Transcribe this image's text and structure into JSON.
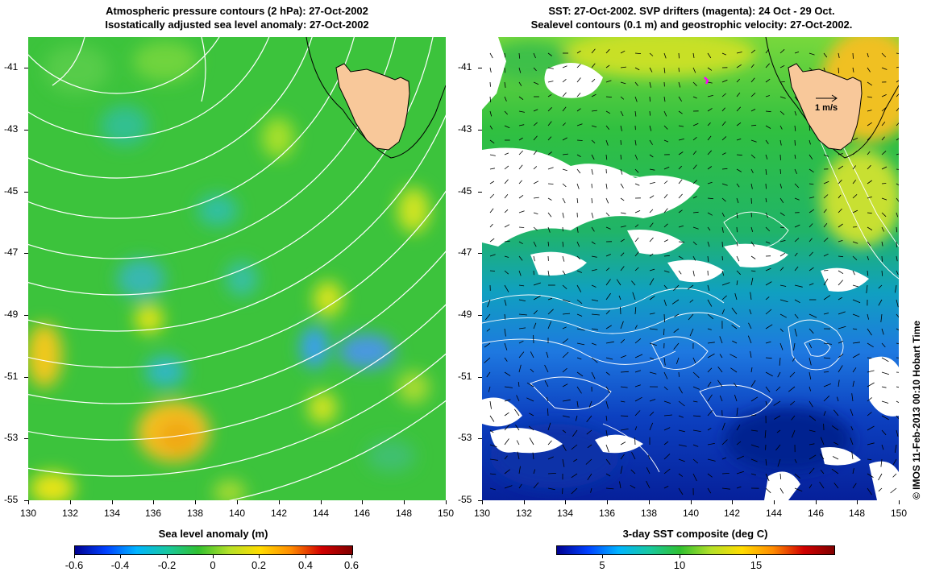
{
  "left_panel": {
    "title_line1": "Atmospheric pressure contours (2 hPa): 27-Oct-2002",
    "title_line2": "Isostatically adjusted sea level anomaly: 27-Oct-2002",
    "colorbar_label": "Sea level anomaly (m)",
    "colorbar_ticks": [
      "-0.6",
      "-0.4",
      "-0.2",
      "0",
      "0.2",
      "0.4",
      "0.6"
    ],
    "colorbar_range": [
      -0.6,
      0.6
    ]
  },
  "right_panel": {
    "title_line1": "SST: 27-Oct-2002. SVP drifters (magenta): 24 Oct - 29 Oct.",
    "title_line2": "Sealevel contours (0.1 m) and geostrophic velocity: 27-Oct-2002.",
    "colorbar_label": "3-day SST composite (deg C)",
    "colorbar_ticks": [
      "5",
      "10",
      "15"
    ],
    "colorbar_range": [
      2,
      20
    ],
    "velocity_scale_label": "1 m/s"
  },
  "latitude_ticks": [
    "-41",
    "-43",
    "-45",
    "-47",
    "-49",
    "-51",
    "-53",
    "-55"
  ],
  "latitude_values": [
    -41,
    -43,
    -45,
    -47,
    -49,
    -51,
    -53,
    -55
  ],
  "longitude_ticks": [
    "130",
    "132",
    "134",
    "136",
    "138",
    "140",
    "142",
    "144",
    "146",
    "148",
    "150"
  ],
  "longitude_values": [
    130,
    132,
    134,
    136,
    138,
    140,
    142,
    144,
    146,
    148,
    150
  ],
  "lat_range": [
    -55,
    -40
  ],
  "lon_range": [
    130,
    150
  ],
  "credit": "© IMOS 11-Feb-2013 00:10 Hobart Time",
  "colors": {
    "land": "#f8c89a",
    "contour_white": "#ffffff",
    "drifter": "#ff00ff"
  }
}
